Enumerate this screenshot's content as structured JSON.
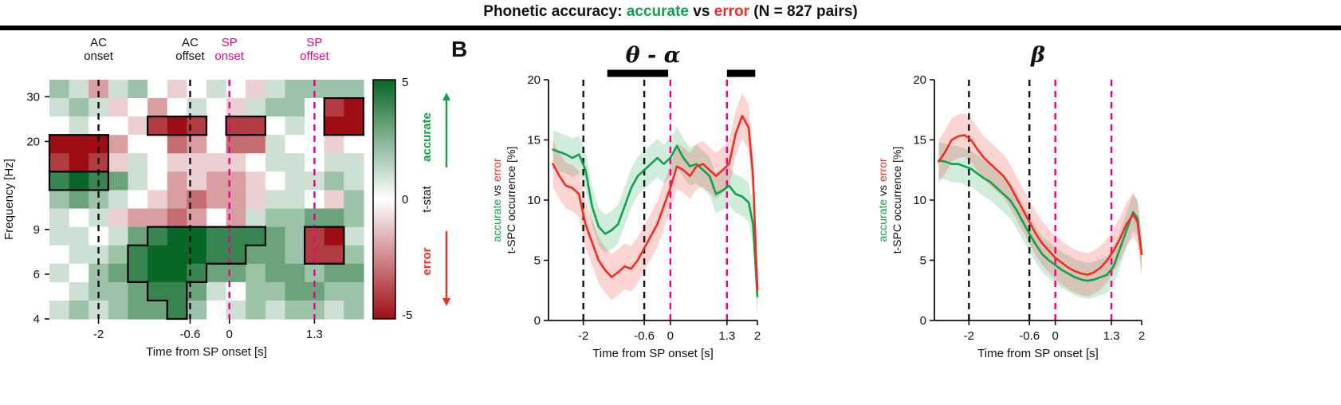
{
  "title": {
    "prefix": "Phonetic accuracy: ",
    "accurate": "accurate",
    "vs": " vs ",
    "error": "error",
    "suffix": " (N = 827 pairs)"
  },
  "panel_b_label": "B",
  "colors": {
    "accurate": "#12a14b",
    "error": "#ee2e24",
    "pink": "#ec008c",
    "black": "#111111",
    "heat_green": "#086626",
    "heat_red": "#9e0d14"
  },
  "colorbar": {
    "max": "5",
    "mid": "0",
    "min": "-5",
    "stat_label": "t-stat",
    "accurate_label": "accurate",
    "error_label": "error"
  },
  "chart_data": [
    {
      "type": "heatmap",
      "xlabel": "Time from SP onset [s]",
      "ylabel": "Frequency [Hz]",
      "x_range": [
        -2.75,
        2.05
      ],
      "y_range_hz": [
        4,
        35
      ],
      "x_ticks": [
        -2,
        -0.6,
        0,
        1.3
      ],
      "x_tick_labels": [
        "-2",
        "-0.6",
        "0",
        "1.3"
      ],
      "y_ticks": [
        30,
        20,
        9,
        6,
        4
      ],
      "tstat_range": [
        -5,
        5
      ],
      "sig_threshold": 4,
      "events": [
        {
          "label_lines": [
            "AC",
            "onset"
          ],
          "x": -2,
          "color_key": "black"
        },
        {
          "label_lines": [
            "AC",
            "offset"
          ],
          "x": -0.6,
          "color_key": "black"
        },
        {
          "label_lines": [
            "SP",
            "onset"
          ],
          "x": 0,
          "color_key": "pink"
        },
        {
          "label_lines": [
            "SP",
            "offset"
          ],
          "x": 1.3,
          "color_key": "pink"
        }
      ],
      "col_x": [
        -2.6,
        -2.3,
        -2.0,
        -1.7,
        -1.4,
        -1.1,
        -0.8,
        -0.5,
        -0.2,
        0.1,
        0.4,
        0.7,
        1.0,
        1.3,
        1.6,
        1.9
      ],
      "row_freqs": [
        32,
        28,
        24,
        21,
        18,
        15.5,
        13,
        11,
        9,
        7.5,
        6,
        5,
        4.3
      ],
      "values": [
        [
          2,
          1,
          -2,
          1,
          2,
          0,
          -1,
          0,
          1,
          0,
          -1,
          1,
          2,
          2,
          2,
          2
        ],
        [
          1,
          2,
          1,
          -1,
          0,
          -2,
          0,
          1,
          0,
          -1,
          1,
          2,
          2,
          0,
          -4,
          -5
        ],
        [
          0,
          1,
          0,
          0,
          -1,
          -4,
          -5,
          -4,
          0,
          -4,
          -4,
          0,
          1,
          0,
          -5,
          -5
        ],
        [
          -5,
          -5,
          -5,
          -2,
          0,
          0,
          -3,
          -2,
          0,
          -3,
          -3,
          1,
          0,
          0,
          -1,
          0
        ],
        [
          -4,
          -5,
          -4,
          -1,
          1,
          0,
          -1,
          -1,
          -1,
          -1,
          0,
          1,
          1,
          0,
          1,
          1
        ],
        [
          4,
          5,
          4,
          3,
          1,
          0,
          -2,
          -1,
          -2,
          -2,
          -1,
          0,
          1,
          1,
          2,
          1
        ],
        [
          2,
          3,
          2,
          1,
          0,
          -1,
          -2,
          -3,
          -2,
          -2,
          -1,
          1,
          1,
          0,
          -1,
          2
        ],
        [
          1,
          0,
          1,
          -1,
          -2,
          -2,
          -3,
          -2,
          0,
          -2,
          1,
          2,
          2,
          3,
          3,
          2
        ],
        [
          1,
          1,
          0,
          1,
          3,
          4,
          5,
          5,
          4,
          4,
          4,
          3,
          2,
          -4,
          -5,
          1
        ],
        [
          0,
          1,
          1,
          2,
          4,
          5,
          5,
          5,
          4,
          4,
          3,
          3,
          2,
          -4,
          -4,
          2
        ],
        [
          1,
          0,
          2,
          3,
          4,
          5,
          5,
          4,
          3,
          3,
          2,
          3,
          3,
          2,
          3,
          3
        ],
        [
          0,
          1,
          2,
          2,
          3,
          4,
          4,
          3,
          1,
          0,
          2,
          2,
          3,
          3,
          2,
          2
        ],
        [
          1,
          2,
          1,
          2,
          3,
          3,
          4,
          2,
          0,
          1,
          2,
          1,
          2,
          2,
          1,
          2
        ]
      ]
    },
    {
      "type": "line",
      "title": "θ - α",
      "xlabel": "Time from SP onset [s]",
      "ylabel_line1": [
        {
          "text": "accurate",
          "color_key": "accurate"
        },
        {
          "text": " vs ",
          "color_key": "black"
        },
        {
          "text": "error",
          "color_key": "error"
        }
      ],
      "ylabel_line2": "t-SPC occurrence [%]",
      "x_range": [
        -2.8,
        2.0
      ],
      "ylim": [
        0,
        20
      ],
      "y_ticks": [
        0,
        5,
        10,
        15,
        20
      ],
      "x_ticks": [
        -2,
        -0.6,
        0,
        1.3,
        2
      ],
      "x_tick_labels": [
        "-2",
        "-0.6",
        "0",
        "1.3",
        "2"
      ],
      "events": [
        {
          "x": -2,
          "color_key": "black"
        },
        {
          "x": -0.6,
          "color_key": "black"
        },
        {
          "x": 0,
          "color_key": "pink"
        },
        {
          "x": 1.3,
          "color_key": "pink"
        }
      ],
      "sig_bars": [
        [
          -1.45,
          -0.05
        ],
        [
          1.3,
          1.95
        ]
      ],
      "x": [
        -2.7,
        -2.55,
        -2.4,
        -2.25,
        -2.1,
        -1.95,
        -1.8,
        -1.65,
        -1.5,
        -1.35,
        -1.2,
        -1.05,
        -0.9,
        -0.75,
        -0.6,
        -0.45,
        -0.3,
        -0.15,
        0,
        0.15,
        0.3,
        0.45,
        0.6,
        0.75,
        0.9,
        1.05,
        1.2,
        1.35,
        1.5,
        1.65,
        1.8,
        1.9,
        2.0
      ],
      "series": [
        {
          "name": "accurate",
          "color_key": "accurate",
          "band_halfwidth": 1.6,
          "values": [
            14.2,
            14.0,
            13.8,
            13.5,
            13.8,
            12.5,
            9.5,
            7.8,
            7.2,
            7.5,
            8.0,
            9.5,
            11.0,
            12.0,
            12.5,
            13.0,
            13.5,
            13.0,
            13.5,
            14.5,
            13.5,
            12.8,
            13.0,
            12.5,
            12.0,
            10.5,
            10.8,
            11.2,
            10.5,
            10.3,
            9.8,
            8.0,
            2.0
          ]
        },
        {
          "name": "error",
          "color_key": "error",
          "band_halfwidth": 1.9,
          "values": [
            13.0,
            12.0,
            11.2,
            11.0,
            10.5,
            8.0,
            6.5,
            5.0,
            4.2,
            3.6,
            4.0,
            4.5,
            4.3,
            5.0,
            6.0,
            7.0,
            8.0,
            9.5,
            11.0,
            12.8,
            12.5,
            12.0,
            12.8,
            13.0,
            12.5,
            12.0,
            12.5,
            13.0,
            15.5,
            17.0,
            16.0,
            12.0,
            2.5
          ]
        }
      ]
    },
    {
      "type": "line",
      "title": "β",
      "xlabel": "Time from SP onset [s]",
      "ylabel_line1": [
        {
          "text": "accurate",
          "color_key": "accurate"
        },
        {
          "text": " vs ",
          "color_key": "black"
        },
        {
          "text": "error",
          "color_key": "error"
        }
      ],
      "ylabel_line2": "t-SPC occurrence [%]",
      "x_range": [
        -2.8,
        2.0
      ],
      "ylim": [
        0,
        20
      ],
      "y_ticks": [
        0,
        5,
        10,
        15,
        20
      ],
      "x_ticks": [
        -2,
        -0.6,
        0,
        1.3,
        2
      ],
      "x_tick_labels": [
        "-2",
        "-0.6",
        "0",
        "1.3",
        "2"
      ],
      "events": [
        {
          "x": -2,
          "color_key": "black"
        },
        {
          "x": -0.6,
          "color_key": "black"
        },
        {
          "x": 0,
          "color_key": "pink"
        },
        {
          "x": 1.3,
          "color_key": "pink"
        }
      ],
      "sig_bars": [],
      "x": [
        -2.7,
        -2.55,
        -2.4,
        -2.25,
        -2.1,
        -1.95,
        -1.8,
        -1.65,
        -1.5,
        -1.35,
        -1.2,
        -1.05,
        -0.9,
        -0.75,
        -0.6,
        -0.45,
        -0.3,
        -0.15,
        0,
        0.15,
        0.3,
        0.45,
        0.6,
        0.75,
        0.9,
        1.05,
        1.2,
        1.35,
        1.5,
        1.65,
        1.8,
        1.9,
        2.0
      ],
      "series": [
        {
          "name": "accurate",
          "color_key": "accurate",
          "band_halfwidth": 1.5,
          "values": [
            13.3,
            13.2,
            13.0,
            13.0,
            12.8,
            12.6,
            12.2,
            11.8,
            11.5,
            11.0,
            10.5,
            10.0,
            9.2,
            8.2,
            7.2,
            6.3,
            5.5,
            5.0,
            4.6,
            4.2,
            3.9,
            3.6,
            3.4,
            3.3,
            3.4,
            3.6,
            3.8,
            4.5,
            6.0,
            7.5,
            9.0,
            8.5,
            5.5
          ]
        },
        {
          "name": "error",
          "color_key": "error",
          "band_halfwidth": 1.8,
          "values": [
            13.2,
            14.0,
            15.0,
            15.3,
            15.4,
            15.0,
            14.2,
            13.5,
            13.0,
            12.5,
            12.0,
            11.2,
            10.2,
            9.2,
            8.2,
            7.2,
            6.4,
            5.8,
            5.2,
            4.8,
            4.4,
            4.1,
            3.9,
            3.8,
            4.0,
            4.4,
            5.0,
            5.8,
            6.8,
            8.0,
            8.8,
            8.2,
            5.5
          ]
        }
      ]
    }
  ]
}
